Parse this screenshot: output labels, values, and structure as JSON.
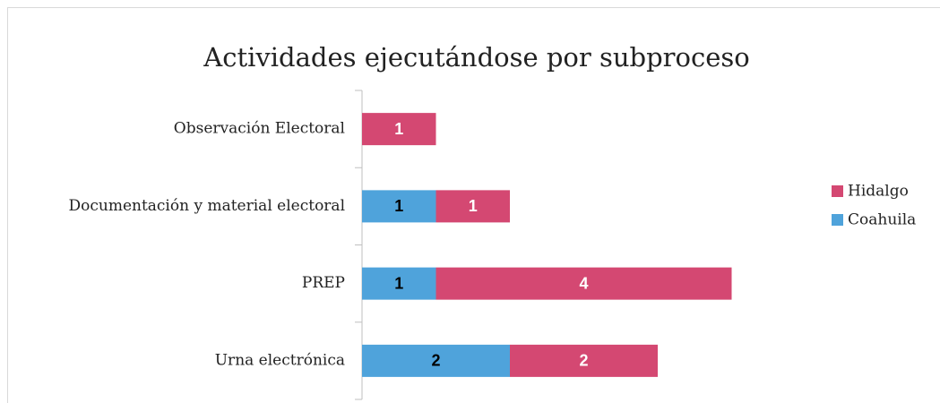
{
  "chart_data": {
    "type": "stacked-barh",
    "title": "Actividades ejecutándose por subproceso",
    "categories": [
      "Observación Electoral",
      "Documentación y material electoral",
      "PREP",
      "Urna electrónica"
    ],
    "series": [
      {
        "name": "Coahuila",
        "color": "#4fa3db",
        "label_color": "#000000",
        "values": [
          null,
          1,
          1,
          2
        ]
      },
      {
        "name": "Hidalgo",
        "color": "#d44872",
        "label_color": "#ffffff",
        "values": [
          1,
          1,
          4,
          2
        ]
      }
    ],
    "xlim": [
      0,
      6
    ],
    "legend": "right"
  }
}
